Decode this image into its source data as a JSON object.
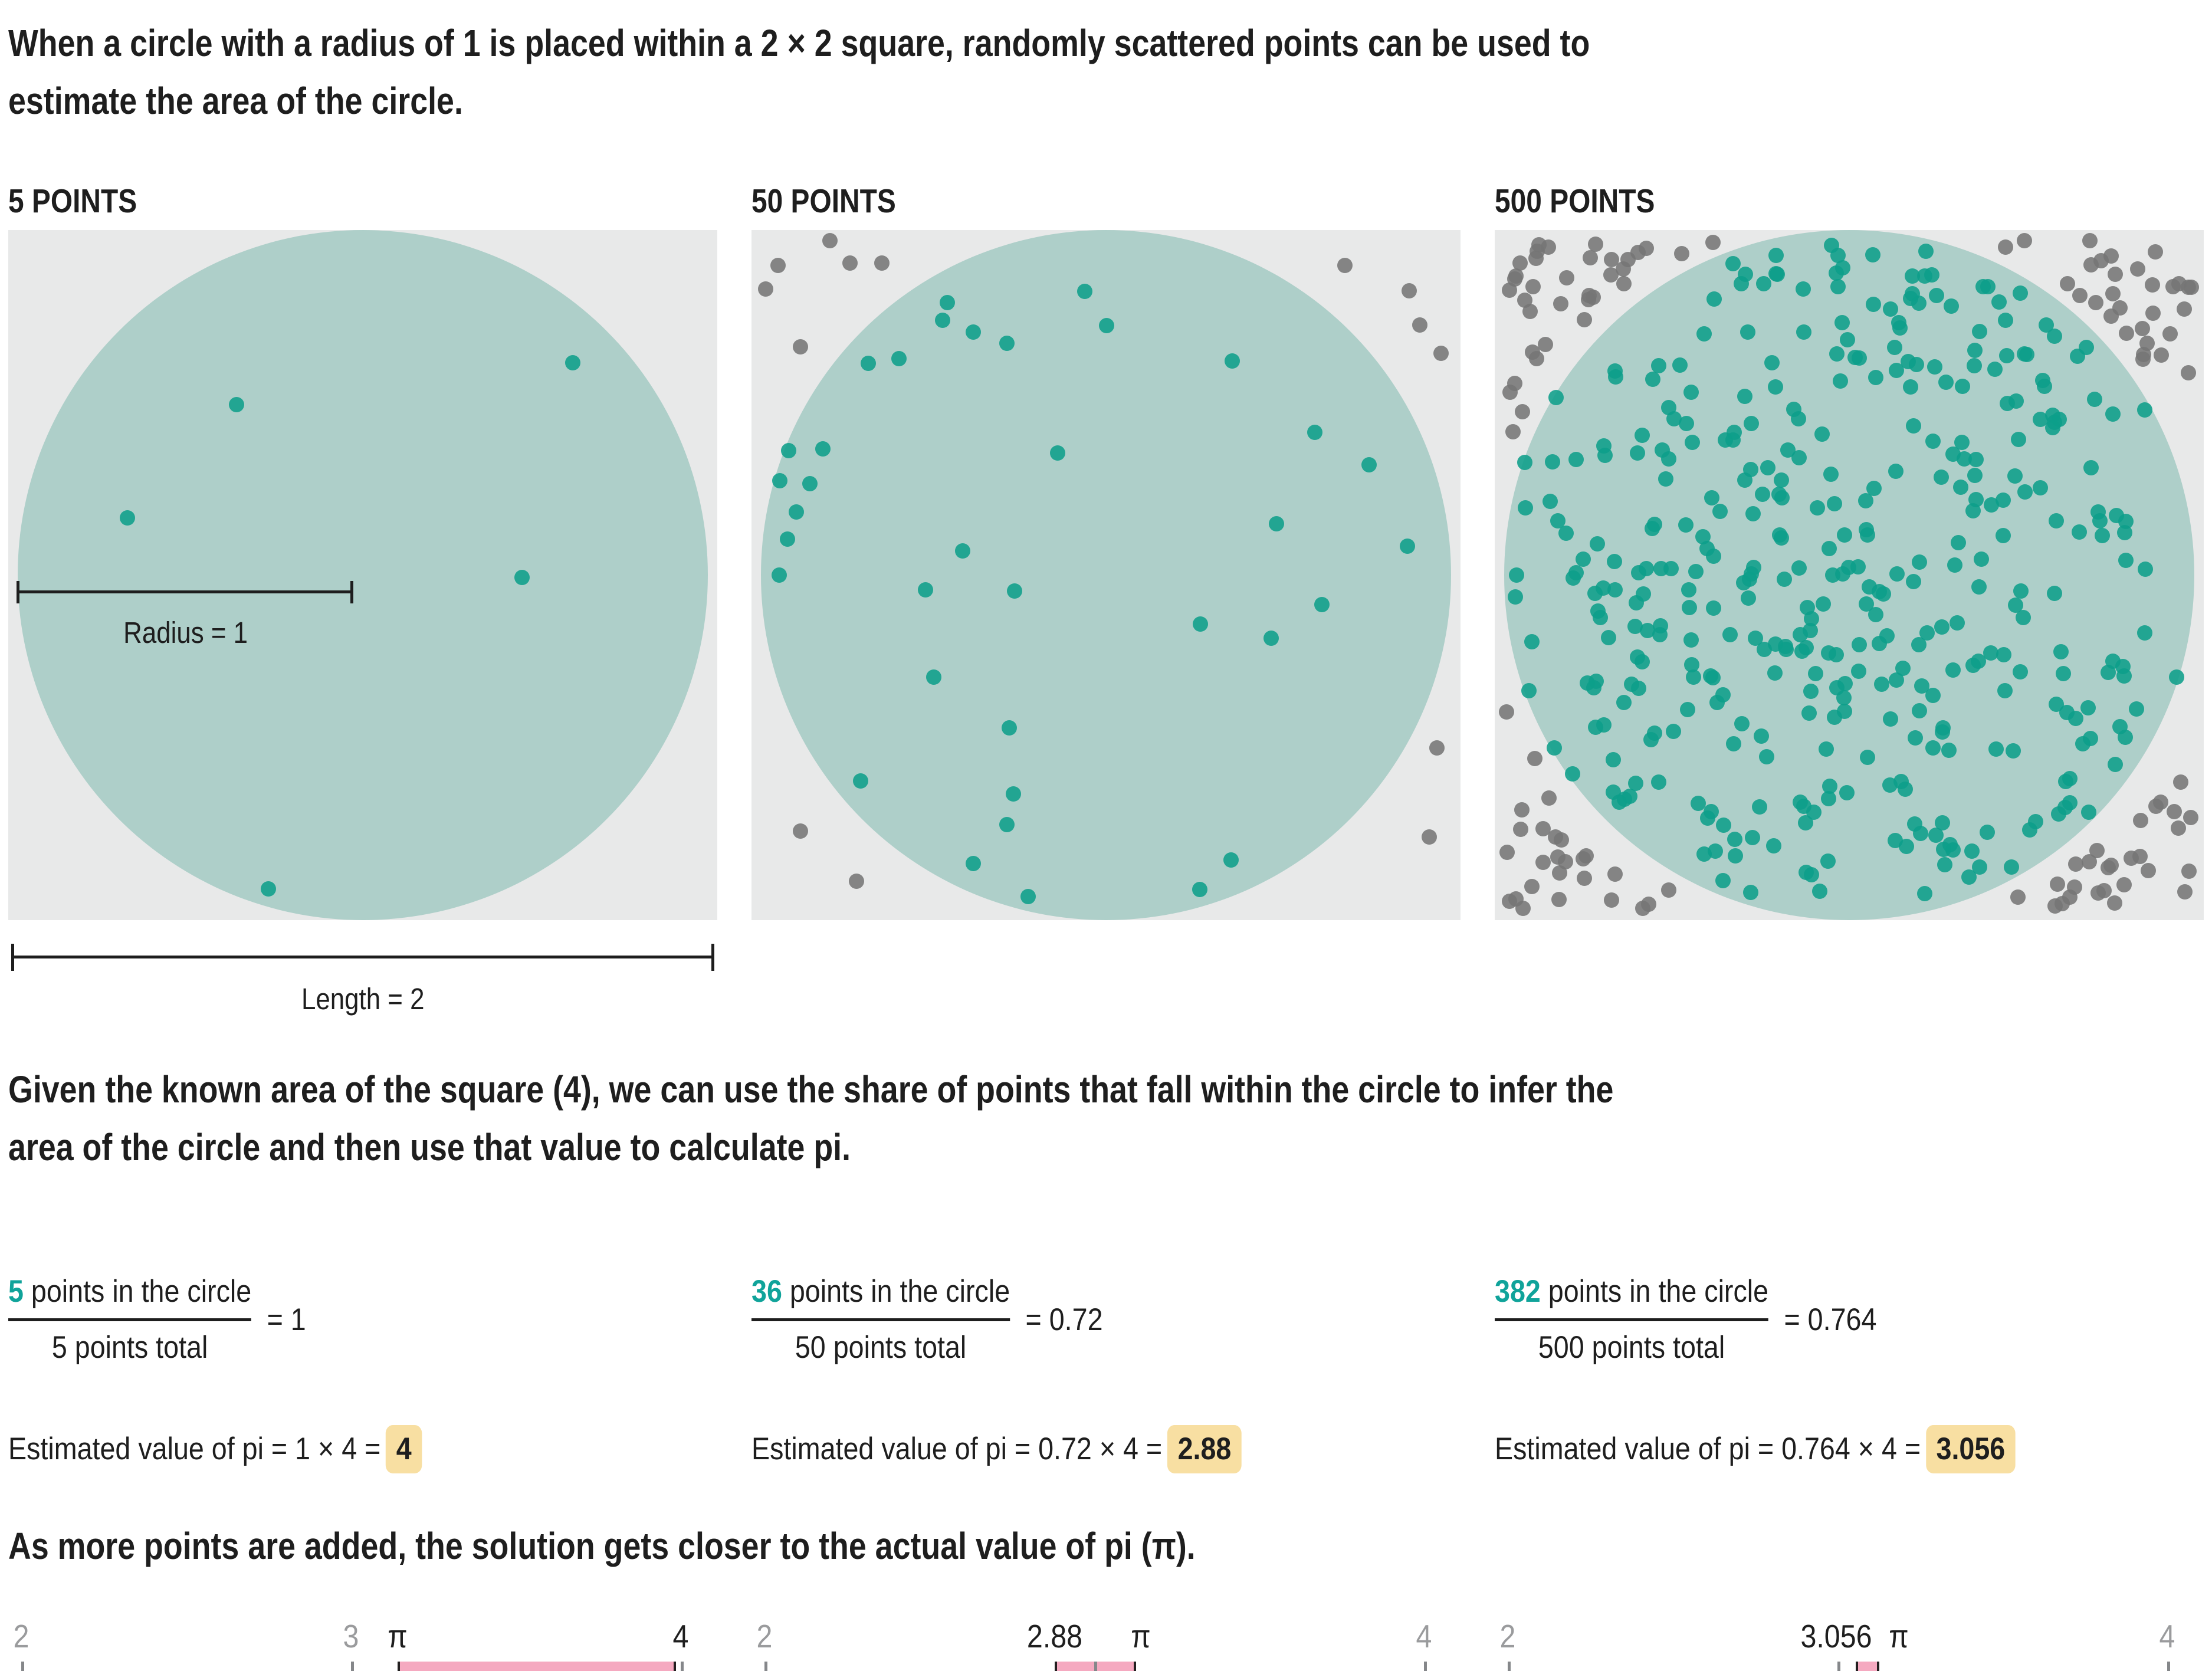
{
  "title_lines": [
    "When a circle with a radius of 1 is placed within a 2 × 2 square, randomly scattered points can be used to",
    "estimate the area of the circle."
  ],
  "middle_lines": [
    "Given the known area of the square (4), we can use the share of points that fall within the circle to infer the",
    "area of the circle and then use that value to calculate pi."
  ],
  "closing_line": "As more points are added, the solution gets closer to the actual value of pi (π).",
  "colors": {
    "text": "#1e1e1e",
    "panel_bg": "#e8e9e9",
    "circle_fill": "#aecfc9",
    "dot_teal": "#0d9e8a",
    "dot_gray": "#757575",
    "teal_text": "#10a39a",
    "highlight": "#f8dfa2",
    "pink_band": "#f5a9c0",
    "band_edge": "#231f20",
    "ruler_line": "#939598",
    "tick": "#85878a",
    "label_gray": "#9a9b9d"
  },
  "panels": [
    {
      "header": "5 POINTS",
      "scatter": {
        "inside": 5,
        "outside": 0,
        "seed": 11,
        "explicit_inside": [
          [
            0.796,
            0.192
          ],
          [
            0.322,
            0.253
          ],
          [
            0.168,
            0.417
          ],
          [
            0.725,
            0.503
          ],
          [
            0.367,
            0.955
          ]
        ],
        "explicit_outside": []
      },
      "annotations": {
        "radius_label": "Radius = 1",
        "length_label": "Length = 2"
      },
      "equation": {
        "numerator_count": "5",
        "numerator_text": " points in the circle",
        "denominator": "5 points total",
        "result": "= 1",
        "estimate_text": "Estimated value of pi = 1 × 4 =",
        "estimate_value": "4"
      },
      "ruler": {
        "min": 2,
        "max": 4,
        "pi": 3.1416,
        "estimate": 4,
        "labels": [
          {
            "text": "2",
            "value": 2,
            "color": "gray"
          },
          {
            "text": "3",
            "value": 3,
            "color": "gray"
          },
          {
            "text": "π",
            "value": 3.1416,
            "color": "black"
          },
          {
            "text": "4",
            "value": 4,
            "color": "black"
          }
        ]
      }
    },
    {
      "header": "50 POINTS",
      "scatter": {
        "inside": 36,
        "outside": 14,
        "seed": 42,
        "explicit_inside": null,
        "explicit_outside": null
      },
      "annotations": null,
      "equation": {
        "numerator_count": "36",
        "numerator_text": " points in the circle",
        "denominator": "50 points total",
        "result": "= 0.72",
        "estimate_text": "Estimated value of pi = 0.72 × 4 =",
        "estimate_value": "2.88"
      },
      "ruler": {
        "min": 2,
        "max": 4,
        "pi": 3.1416,
        "estimate": 2.88,
        "labels": [
          {
            "text": "2",
            "value": 2,
            "color": "gray"
          },
          {
            "text": "2.88",
            "value": 2.88,
            "color": "black"
          },
          {
            "text": "π",
            "value": 3.1416,
            "color": "black"
          },
          {
            "text": "4",
            "value": 4,
            "color": "gray"
          }
        ]
      }
    },
    {
      "header": "500 POINTS",
      "scatter": {
        "inside": 382,
        "outside": 118,
        "seed": 1337,
        "explicit_inside": null,
        "explicit_outside": null
      },
      "annotations": null,
      "equation": {
        "numerator_count": "382",
        "numerator_text": " points in the circle",
        "denominator": "500 points total",
        "result": "= 0.764",
        "estimate_text": "Estimated value of pi = 0.764 × 4 =",
        "estimate_value": "3.056"
      },
      "ruler": {
        "min": 2,
        "max": 4,
        "pi": 3.1416,
        "estimate": 3.056,
        "labels": [
          {
            "text": "2",
            "value": 2,
            "color": "gray"
          },
          {
            "text": "3.056",
            "value": 3.056,
            "color": "black",
            "dx": -0.06
          },
          {
            "text": "π",
            "value": 3.1416,
            "color": "black",
            "dx": 0.045
          },
          {
            "text": "4",
            "value": 4,
            "color": "gray"
          }
        ]
      }
    }
  ],
  "chart_data": {
    "type": "scatter",
    "title": "Monte Carlo estimation of pi",
    "square_area": 4,
    "circle_radius": 1,
    "square_side": 2,
    "panels": [
      {
        "points_total": 5,
        "points_in_circle": 5,
        "ratio": 1,
        "pi_estimate": 4
      },
      {
        "points_total": 50,
        "points_in_circle": 36,
        "ratio": 0.72,
        "pi_estimate": 2.88
      },
      {
        "points_total": 500,
        "points_in_circle": 382,
        "ratio": 0.764,
        "pi_estimate": 3.056
      }
    ],
    "number_line": {
      "min": 2,
      "max": 4,
      "minor_step": 0.1,
      "pi": 3.1416
    }
  }
}
